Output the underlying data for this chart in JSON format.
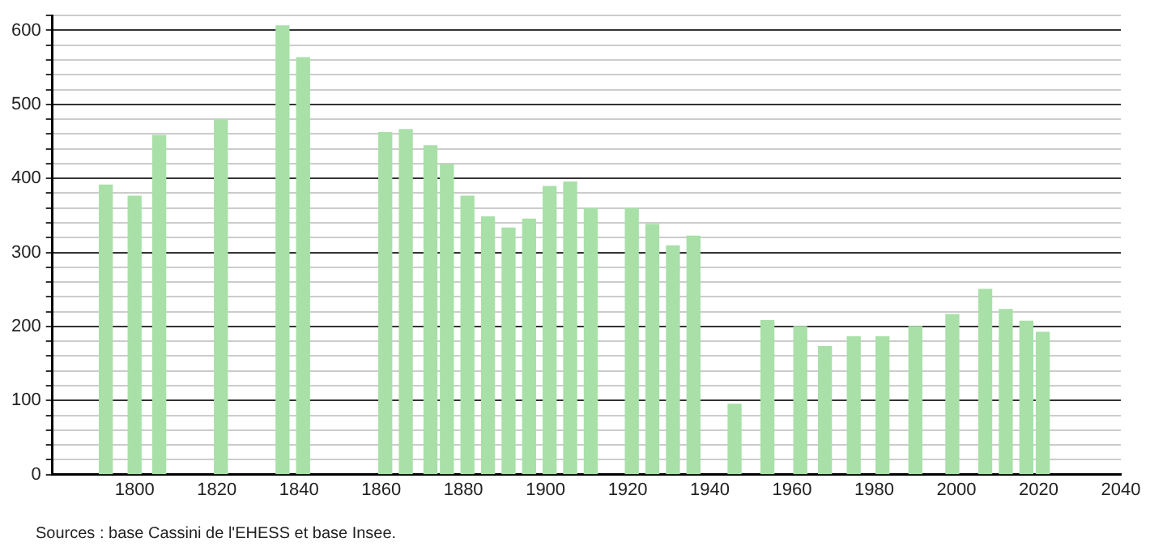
{
  "chart_data": {
    "type": "bar",
    "color": "#a8e0a8",
    "x": [
      1793,
      1800,
      1806,
      1821,
      1836,
      1841,
      1861,
      1866,
      1872,
      1876,
      1881,
      1886,
      1891,
      1896,
      1901,
      1906,
      1911,
      1921,
      1926,
      1931,
      1936,
      1946,
      1954,
      1962,
      1968,
      1975,
      1982,
      1990,
      1999,
      2007,
      2012,
      2017,
      2021
    ],
    "values": [
      391,
      376,
      458,
      479,
      606,
      563,
      462,
      466,
      444,
      419,
      376,
      348,
      333,
      345,
      389,
      395,
      359,
      359,
      338,
      309,
      322,
      95,
      208,
      200,
      173,
      186,
      186,
      200,
      216,
      250,
      223,
      207,
      192
    ],
    "xlim": [
      1780,
      2040
    ],
    "xticks": [
      1800,
      1820,
      1840,
      1860,
      1880,
      1900,
      1920,
      1940,
      1960,
      1980,
      2000,
      2020,
      2040
    ],
    "ylim": [
      0,
      620
    ],
    "yticks": [
      0,
      {
        "value": 20,
        "label": null
      },
      {
        "value": 40,
        "label": null
      },
      {
        "value": 60,
        "label": null
      },
      {
        "value": 80,
        "label": null
      },
      100,
      {
        "value": 120,
        "label": null
      },
      {
        "value": 140,
        "label": null
      },
      {
        "value": 160,
        "label": null
      },
      {
        "value": 180,
        "label": null
      },
      200,
      {
        "value": 220,
        "label": null
      },
      {
        "value": 240,
        "label": null
      },
      {
        "value": 260,
        "label": null
      },
      {
        "value": 280,
        "label": null
      },
      300,
      {
        "value": 320,
        "label": null
      },
      {
        "value": 340,
        "label": null
      },
      {
        "value": 360,
        "label": null
      },
      {
        "value": 380,
        "label": null
      },
      400,
      {
        "value": 420,
        "label": null
      },
      {
        "value": 440,
        "label": null
      },
      {
        "value": 460,
        "label": null
      },
      {
        "value": 480,
        "label": null
      },
      500,
      {
        "value": 520,
        "label": null
      },
      {
        "value": 540,
        "label": null
      },
      {
        "value": 560,
        "label": null
      },
      {
        "value": 580,
        "label": null
      },
      600,
      {
        "value": 620,
        "label": null
      }
    ],
    "grid": "y",
    "legend": false,
    "annotations": [
      "Sources : base Cassini de l'EHESS et base Insee."
    ]
  }
}
